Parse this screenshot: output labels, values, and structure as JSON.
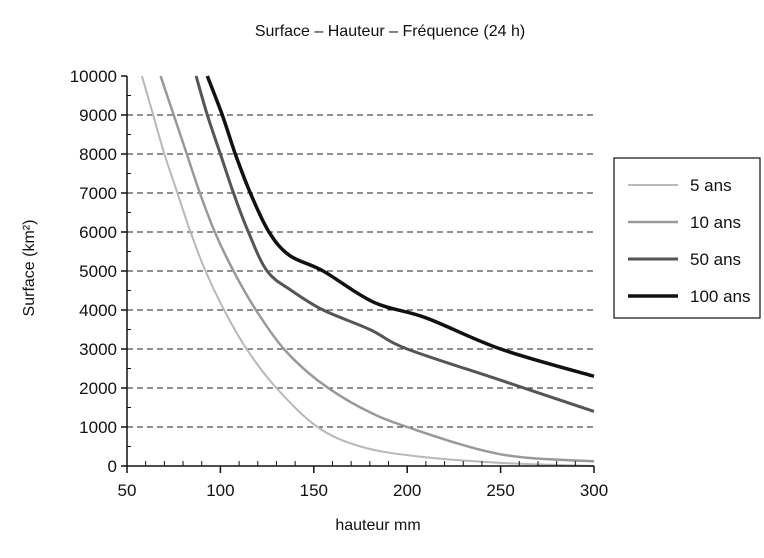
{
  "chart_data": {
    "type": "line",
    "title": "Surface – Hauteur – Fréquence (24 h)",
    "xlabel": "hauteur mm",
    "ylabel": "Surface (km²)",
    "xlim": [
      50,
      300
    ],
    "ylim": [
      0,
      10000
    ],
    "x_ticks": [
      "50",
      "100",
      "150",
      "200",
      "250",
      "300"
    ],
    "y_ticks": [
      "0",
      "1000",
      "2000",
      "3000",
      "4000",
      "5000",
      "6000",
      "7000",
      "8000",
      "9000",
      "10000"
    ],
    "grid": "horizontal-dashed",
    "legend_position": "right",
    "series": [
      {
        "name": "5 ans",
        "color": "#b8b8b8",
        "stroke_width": 2,
        "points": [
          [
            58,
            10000
          ],
          [
            64,
            9000
          ],
          [
            70,
            8000
          ],
          [
            77,
            7000
          ],
          [
            84,
            6000
          ],
          [
            92,
            5000
          ],
          [
            102,
            4000
          ],
          [
            114,
            3000
          ],
          [
            130,
            2000
          ],
          [
            152,
            1000
          ],
          [
            175,
            500
          ],
          [
            205,
            250
          ],
          [
            250,
            80
          ],
          [
            300,
            0
          ]
        ]
      },
      {
        "name": "10 ans",
        "color": "#999999",
        "stroke_width": 2.5,
        "points": [
          [
            68,
            10000
          ],
          [
            75,
            9000
          ],
          [
            82,
            8000
          ],
          [
            89,
            7000
          ],
          [
            97,
            6000
          ],
          [
            107,
            5000
          ],
          [
            119,
            4000
          ],
          [
            134,
            3000
          ],
          [
            152,
            2200
          ],
          [
            175,
            1500
          ],
          [
            200,
            1000
          ],
          [
            250,
            300
          ],
          [
            300,
            120
          ]
        ]
      },
      {
        "name": "50 ans",
        "color": "#555555",
        "stroke_width": 3,
        "points": [
          [
            87,
            10000
          ],
          [
            93,
            9000
          ],
          [
            100,
            8000
          ],
          [
            107,
            7000
          ],
          [
            115,
            6000
          ],
          [
            125,
            5000
          ],
          [
            138,
            4500
          ],
          [
            155,
            4000
          ],
          [
            180,
            3500
          ],
          [
            200,
            3000
          ],
          [
            250,
            2200
          ],
          [
            300,
            1400
          ]
        ]
      },
      {
        "name": "100 ans",
        "color": "#111111",
        "stroke_width": 3.5,
        "points": [
          [
            93,
            10000
          ],
          [
            101,
            9000
          ],
          [
            108,
            8000
          ],
          [
            116,
            7000
          ],
          [
            126,
            6000
          ],
          [
            137,
            5400
          ],
          [
            155,
            5000
          ],
          [
            182,
            4200
          ],
          [
            210,
            3800
          ],
          [
            250,
            3000
          ],
          [
            300,
            2300
          ]
        ]
      }
    ]
  }
}
